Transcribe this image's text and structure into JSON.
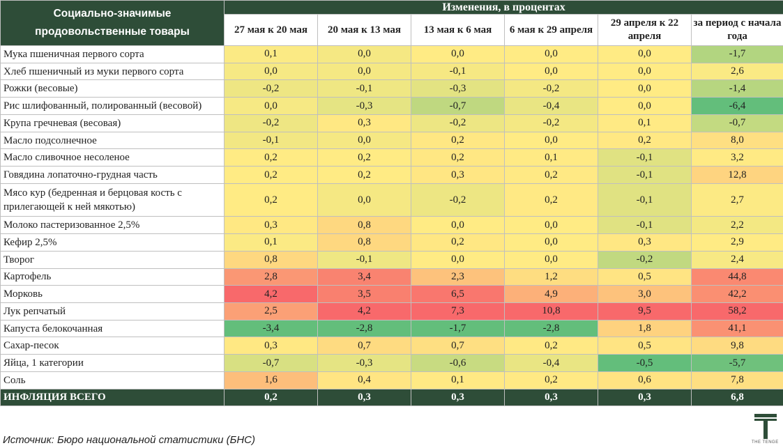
{
  "header": {
    "left_title": "Социально-значимые продовольственные товары",
    "group_title": "Изменения, в процентах",
    "columns": [
      "27 мая к 20 мая",
      "20 мая к 13 мая",
      "13 мая к 6 мая",
      "6 мая к 29 апреля",
      "29 апреля к 22 апреля",
      "за период с начала года"
    ]
  },
  "chart_data": {
    "type": "table",
    "columns": [
      "27 мая к 20 мая",
      "20 мая к 13 мая",
      "13 мая к 6 мая",
      "6 мая к 29 апреля",
      "29 апреля к 22 апреля",
      "за период с начала года"
    ],
    "rows": [
      {
        "name": "Мука пшеничная первого сорта",
        "values": [
          "0,1",
          "0,0",
          "0,0",
          "0,0",
          "0,0",
          "-1,7"
        ]
      },
      {
        "name": "Хлеб пшеничный из муки первого сорта",
        "values": [
          "0,0",
          "0,0",
          "-0,1",
          "0,0",
          "0,0",
          "2,6"
        ]
      },
      {
        "name": "Рожки (весовые)",
        "values": [
          "-0,2",
          "-0,1",
          "-0,3",
          "-0,2",
          "0,0",
          "-1,4"
        ]
      },
      {
        "name": "Рис шлифованный, полированный (весовой)",
        "values": [
          "0,0",
          "-0,3",
          "-0,7",
          "-0,4",
          "0,0",
          "-6,4"
        ]
      },
      {
        "name": "Крупа гречневая (весовая)",
        "values": [
          "-0,2",
          "0,3",
          "-0,2",
          "-0,2",
          "0,1",
          "-0,7"
        ]
      },
      {
        "name": "Масло подсолнечное",
        "values": [
          "-0,1",
          "0,0",
          "0,2",
          "0,0",
          "0,2",
          "8,0"
        ]
      },
      {
        "name": "Масло сливочное несоленое",
        "values": [
          "0,2",
          "0,2",
          "0,2",
          "0,1",
          "-0,1",
          "3,2"
        ]
      },
      {
        "name": "Говядина лопаточно-грудная часть",
        "values": [
          "0,2",
          "0,2",
          "0,3",
          "0,2",
          "-0,1",
          "12,8"
        ]
      },
      {
        "name": "Мясо кур (бедренная и берцовая кость с прилегающей к ней мякотью)",
        "values": [
          "0,2",
          "0,0",
          "-0,2",
          "0,2",
          "-0,1",
          "2,7"
        ]
      },
      {
        "name": "Молоко пастеризованное 2,5%",
        "values": [
          "0,3",
          "0,8",
          "0,0",
          "0,0",
          "-0,1",
          "2,2"
        ]
      },
      {
        "name": "Кефир 2,5%",
        "values": [
          "0,1",
          "0,8",
          "0,2",
          "0,0",
          "0,3",
          "2,9"
        ]
      },
      {
        "name": "Творог",
        "values": [
          "0,8",
          "-0,1",
          "0,0",
          "0,0",
          "-0,2",
          "2,4"
        ]
      },
      {
        "name": "Картофель",
        "values": [
          "2,8",
          "3,4",
          "2,3",
          "1,2",
          "0,5",
          "44,8"
        ]
      },
      {
        "name": "Морковь",
        "values": [
          "4,2",
          "3,5",
          "6,5",
          "4,9",
          "3,0",
          "42,2"
        ]
      },
      {
        "name": "Лук репчатый",
        "values": [
          "2,5",
          "4,2",
          "7,3",
          "10,8",
          "9,5",
          "58,2"
        ]
      },
      {
        "name": "Капуста белокочанная",
        "values": [
          "-3,4",
          "-2,8",
          "-1,7",
          "-2,8",
          "1,8",
          "41,1"
        ]
      },
      {
        "name": "Сахар-песок",
        "values": [
          "0,3",
          "0,7",
          "0,7",
          "0,2",
          "0,5",
          "9,8"
        ]
      },
      {
        "name": "Яйца, 1 категории",
        "values": [
          "-0,7",
          "-0,3",
          "-0,6",
          "-0,4",
          "-0,5",
          "-5,7"
        ]
      },
      {
        "name": "Соль",
        "values": [
          "1,6",
          "0,4",
          "0,1",
          "0,2",
          "0,6",
          "7,8"
        ]
      }
    ],
    "total": {
      "name": "ИНФЛЯЦИЯ ВСЕГО",
      "values": [
        "0,2",
        "0,3",
        "0,3",
        "0,3",
        "0,3",
        "6,8"
      ]
    }
  },
  "footer": {
    "source": "Источник: Бюро национальной статистики (БНС)",
    "logo_text": "THE TENGE"
  },
  "colors": {
    "header_bg": "#2e4d38",
    "green": "#63be7b",
    "yellow": "#ffeb84",
    "red": "#f8696b"
  }
}
